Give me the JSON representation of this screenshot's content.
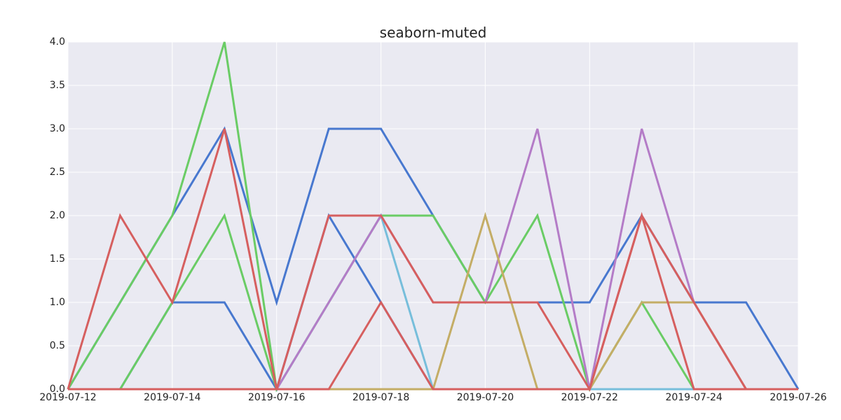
{
  "chart_data": {
    "type": "line",
    "title": "seaborn-muted",
    "x": [
      "2019-07-12",
      "2019-07-13",
      "2019-07-14",
      "2019-07-15",
      "2019-07-16",
      "2019-07-17",
      "2019-07-18",
      "2019-07-19",
      "2019-07-20",
      "2019-07-21",
      "2019-07-22",
      "2019-07-23",
      "2019-07-24",
      "2019-07-25",
      "2019-07-26"
    ],
    "xticks": [
      "2019-07-12",
      "2019-07-14",
      "2019-07-16",
      "2019-07-18",
      "2019-07-20",
      "2019-07-22",
      "2019-07-24",
      "2019-07-26"
    ],
    "ylim": [
      0,
      4
    ],
    "yticks": [
      {
        "value": 0,
        "label": "0.0"
      },
      {
        "value": 0.5,
        "label": "0.5"
      },
      {
        "value": 1,
        "label": "1.0"
      },
      {
        "value": 1.5,
        "label": "1.5"
      },
      {
        "value": 2,
        "label": "2.0"
      },
      {
        "value": 2.5,
        "label": "2.5"
      },
      {
        "value": 3,
        "label": "3.0"
      },
      {
        "value": 3.5,
        "label": "3.5"
      },
      {
        "value": 4,
        "label": "4.0"
      }
    ],
    "grid": true,
    "series": [
      {
        "color": "#4878CF",
        "values": [
          0,
          1,
          2,
          3,
          1,
          3,
          3,
          2,
          1,
          1,
          1,
          2,
          1,
          1,
          0
        ]
      },
      {
        "color": "#4878CF",
        "values": [
          0,
          0,
          1,
          1,
          0,
          2,
          1,
          0,
          0,
          0,
          0,
          0,
          0,
          0,
          0
        ]
      },
      {
        "color": "#6ACC65",
        "values": [
          0,
          1,
          2,
          4,
          0,
          1,
          2,
          2,
          1,
          2,
          0,
          1,
          0,
          0,
          0
        ]
      },
      {
        "color": "#6ACC65",
        "values": [
          0,
          0,
          1,
          2,
          0,
          0,
          0,
          0,
          0,
          0,
          0,
          0,
          0,
          0,
          0
        ]
      },
      {
        "color": "#77BEDB",
        "values": [
          0,
          0,
          0,
          0,
          0,
          1,
          2,
          0,
          0,
          0,
          0,
          0,
          0,
          0,
          0
        ]
      },
      {
        "color": "#B47CC7",
        "values": [
          0,
          0,
          0,
          0,
          0,
          1,
          2,
          1,
          1,
          3,
          0,
          3,
          1,
          0,
          0
        ]
      },
      {
        "color": "#C4AD66",
        "values": [
          0,
          0,
          0,
          0,
          0,
          0,
          0,
          0,
          2,
          0,
          0,
          1,
          1,
          0,
          0
        ]
      },
      {
        "color": "#D65F5F",
        "values": [
          0,
          2,
          1,
          3,
          0,
          2,
          2,
          1,
          1,
          1,
          0,
          2,
          1,
          0,
          0
        ]
      },
      {
        "color": "#D65F5F",
        "values": [
          0,
          0,
          0,
          0,
          0,
          0,
          1,
          0,
          0,
          0,
          0,
          2,
          0,
          0,
          0
        ]
      }
    ]
  }
}
